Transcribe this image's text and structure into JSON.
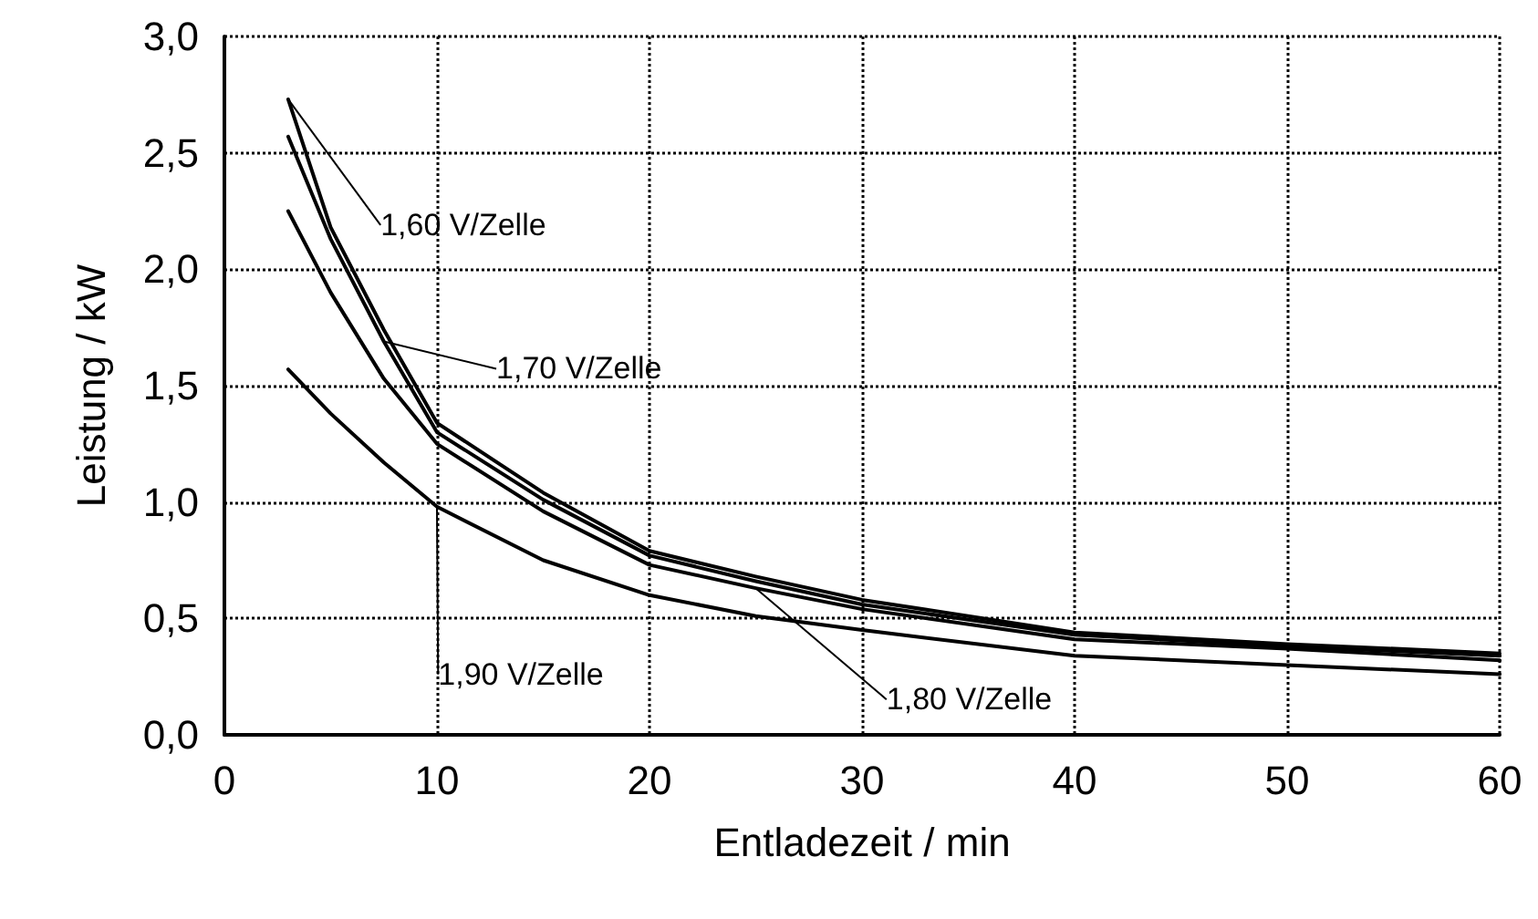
{
  "chart_data": {
    "type": "line",
    "xlabel": "Entladezeit / min",
    "ylabel": "Leistung / kW",
    "x": [
      3,
      5,
      7.5,
      10,
      15,
      20,
      25,
      30,
      40,
      50,
      60
    ],
    "series": [
      {
        "name": "1,60 V/Zelle",
        "color": "#000000",
        "values": [
          2.73,
          2.18,
          1.74,
          1.34,
          1.04,
          0.79,
          0.68,
          0.58,
          0.44,
          0.39,
          0.35
        ]
      },
      {
        "name": "1,70 V/Zelle",
        "color": "#000000",
        "values": [
          2.57,
          2.13,
          1.69,
          1.3,
          1.01,
          0.77,
          0.66,
          0.56,
          0.43,
          0.38,
          0.34
        ]
      },
      {
        "name": "1,80 V/Zelle",
        "color": "#000000",
        "values": [
          2.25,
          1.9,
          1.53,
          1.25,
          0.96,
          0.73,
          0.63,
          0.54,
          0.41,
          0.37,
          0.32
        ]
      },
      {
        "name": "1,90 V/Zelle",
        "color": "#000000",
        "values": [
          1.57,
          1.38,
          1.17,
          0.98,
          0.75,
          0.6,
          0.51,
          0.45,
          0.34,
          0.3,
          0.26
        ]
      }
    ],
    "xlim": [
      0,
      60
    ],
    "xticks": [
      0,
      10,
      20,
      30,
      40,
      50,
      60
    ],
    "ylim": [
      0,
      3
    ],
    "yticks": [
      {
        "value": 0,
        "label": "0,0"
      },
      {
        "value": 0.5,
        "label": "0,5"
      },
      {
        "value": 1,
        "label": "1,0"
      },
      {
        "value": 1.5,
        "label": "1,5"
      },
      {
        "value": 2,
        "label": "2,0"
      },
      {
        "value": 2.5,
        "label": "2,5"
      },
      {
        "value": 3,
        "label": "3,0"
      }
    ],
    "grid": true,
    "marker": "none",
    "line_style": "solid"
  }
}
